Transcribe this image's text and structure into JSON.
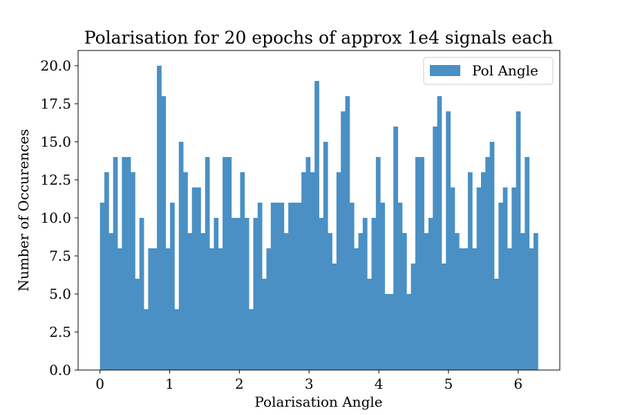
{
  "chart_data": {
    "type": "bar",
    "title": "Polarisation for 20 epochs of approx 1e4 signals each",
    "xlabel": "Polarisation Angle",
    "ylabel": "Number of Occurences",
    "xlim": [
      -0.314,
      6.597
    ],
    "ylim": [
      0,
      21
    ],
    "xticks": [
      0,
      1,
      2,
      3,
      4,
      5,
      6
    ],
    "xtick_labels": [
      "0",
      "1",
      "2",
      "3",
      "4",
      "5",
      "6"
    ],
    "yticks": [
      0,
      2.5,
      5,
      7.5,
      10,
      12.5,
      15,
      17.5,
      20
    ],
    "ytick_labels": [
      "0.0",
      "2.5",
      "5.0",
      "7.5",
      "10.0",
      "12.5",
      "15.0",
      "17.5",
      "20.0"
    ],
    "bin_range": [
      0,
      6.283
    ],
    "bar_color": "#4a90c4",
    "grid": false,
    "legend_position": "upper right",
    "series": [
      {
        "name": "Pol Angle",
        "values": [
          11,
          13,
          9,
          14,
          8,
          14,
          14,
          13,
          6,
          10,
          4,
          8,
          8,
          20,
          18,
          8,
          11,
          4,
          15,
          13,
          9,
          12,
          12,
          9,
          14,
          8,
          10,
          8,
          14,
          14,
          10,
          10,
          13,
          10,
          4,
          10,
          11,
          6,
          8,
          11,
          11,
          11,
          9,
          11,
          11,
          11,
          13,
          14,
          13,
          19,
          10,
          15,
          9,
          7,
          13,
          17,
          18,
          11,
          8,
          9,
          10,
          6,
          10,
          14,
          11,
          5,
          5,
          16,
          11,
          9,
          5,
          7,
          14,
          14,
          9,
          10,
          16,
          18,
          7,
          17,
          12,
          9,
          8,
          8,
          13,
          8,
          12,
          13,
          14,
          15,
          6,
          11,
          12,
          8,
          12,
          17,
          9,
          14,
          8,
          9
        ]
      }
    ]
  }
}
